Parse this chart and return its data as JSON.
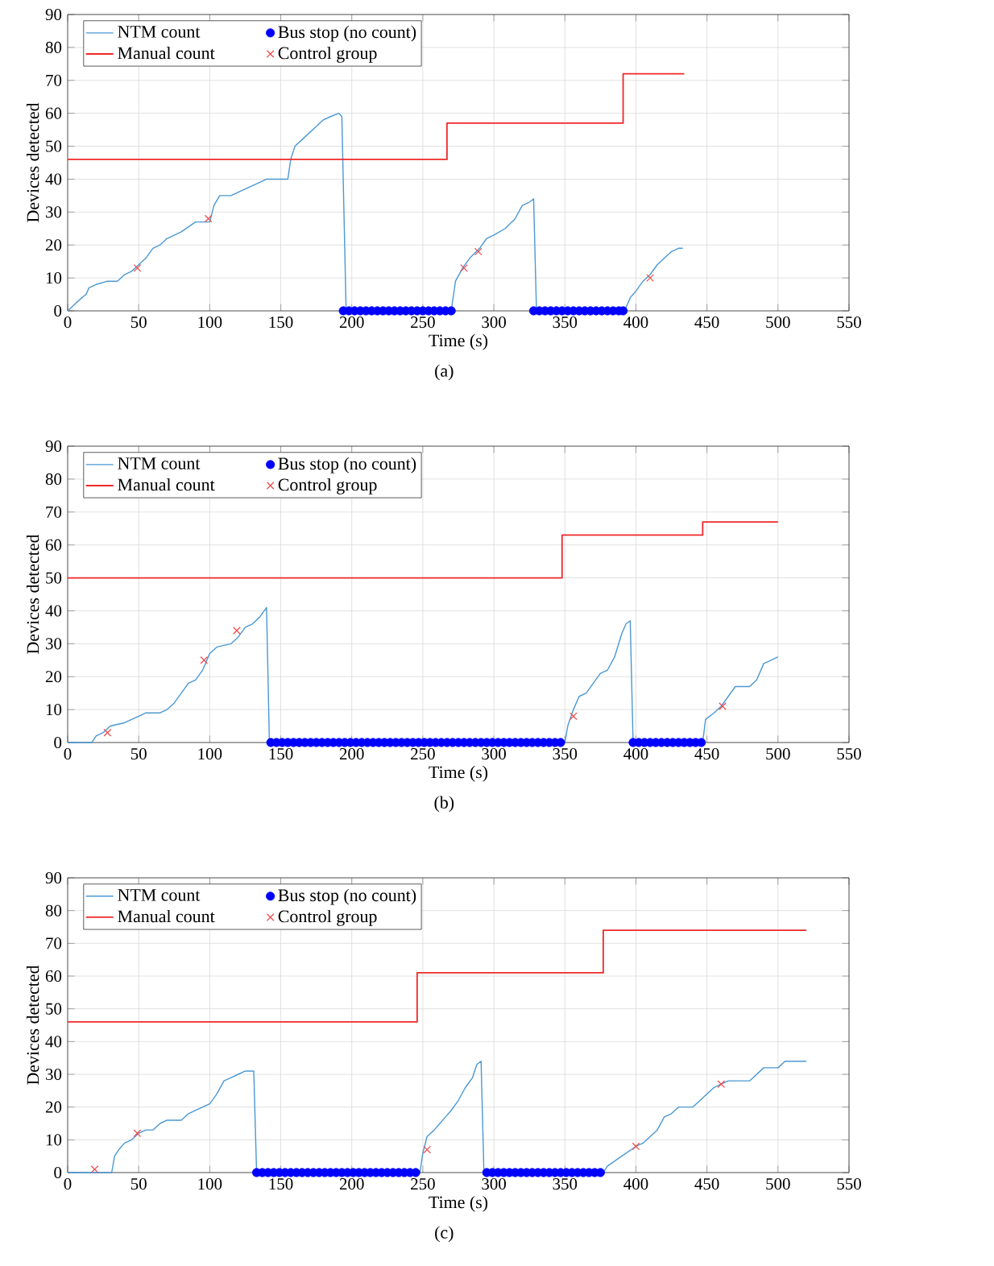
{
  "chart_data": [
    {
      "type": "line",
      "xlabel": "Time (s)",
      "ylabel": "Devices detected",
      "annotations": [
        "(a)"
      ],
      "xlim": [
        0,
        550
      ],
      "ylim": [
        0,
        90
      ],
      "xticks": [
        0,
        50,
        100,
        150,
        200,
        250,
        300,
        350,
        400,
        450,
        500,
        550
      ],
      "yticks": [
        0,
        10,
        20,
        30,
        40,
        50,
        60,
        70,
        80,
        90
      ],
      "grid": true,
      "legend": "top left",
      "series": [
        {
          "name": "NTM count",
          "color": "#4a98d4",
          "x": [
            0,
            5,
            10,
            13,
            15,
            20,
            28,
            35,
            40,
            45,
            50,
            55,
            60,
            65,
            70,
            80,
            90,
            100,
            103,
            107,
            115,
            125,
            135,
            140,
            155,
            157,
            160,
            165,
            170,
            175,
            180,
            185,
            191,
            193,
            196,
            270,
            273,
            278,
            283,
            290,
            295,
            300,
            308,
            315,
            320,
            325,
            328,
            330,
            392,
            396,
            400,
            405,
            410,
            415,
            420,
            425,
            430,
            433
          ],
          "values": [
            0,
            2,
            4,
            5,
            7,
            8,
            9,
            9,
            11,
            12,
            14,
            16,
            19,
            20,
            22,
            24,
            27,
            27,
            32,
            35,
            35,
            37,
            39,
            40,
            40,
            46,
            50,
            52,
            54,
            56,
            58,
            59,
            60,
            59,
            0,
            0,
            9,
            13,
            16,
            19,
            22,
            23,
            25,
            28,
            32,
            33,
            34,
            0,
            0,
            4,
            6,
            9,
            11,
            14,
            16,
            18,
            19,
            19
          ]
        },
        {
          "name": "Bus stop (no count)",
          "type": "scatter",
          "marker": "circle",
          "color": "#0000ff",
          "x": [
            194,
            198,
            202,
            206,
            210,
            214,
            218,
            222,
            226,
            230,
            234,
            238,
            242,
            246,
            250,
            254,
            258,
            262,
            266,
            270,
            328,
            332,
            336,
            340,
            344,
            348,
            352,
            356,
            360,
            364,
            368,
            372,
            376,
            380,
            384,
            388,
            391
          ],
          "values": [
            0,
            0,
            0,
            0,
            0,
            0,
            0,
            0,
            0,
            0,
            0,
            0,
            0,
            0,
            0,
            0,
            0,
            0,
            0,
            0,
            0,
            0,
            0,
            0,
            0,
            0,
            0,
            0,
            0,
            0,
            0,
            0,
            0,
            0,
            0,
            0,
            0
          ]
        },
        {
          "name": "Manual count",
          "type": "step",
          "color": "#f02828",
          "x": [
            0,
            267,
            391,
            434
          ],
          "values": [
            46,
            57,
            72,
            72
          ]
        },
        {
          "name": "Control group",
          "type": "scatter",
          "marker": "cross",
          "color": "#f04848",
          "x": [
            49,
            99,
            279,
            289,
            410
          ],
          "values": [
            13,
            28,
            13,
            18,
            10
          ]
        }
      ]
    },
    {
      "type": "line",
      "xlabel": "Time (s)",
      "ylabel": "Devices detected",
      "annotations": [
        "(b)"
      ],
      "xlim": [
        0,
        550
      ],
      "ylim": [
        0,
        90
      ],
      "xticks": [
        0,
        50,
        100,
        150,
        200,
        250,
        300,
        350,
        400,
        450,
        500,
        550
      ],
      "yticks": [
        0,
        10,
        20,
        30,
        40,
        50,
        60,
        70,
        80,
        90
      ],
      "grid": true,
      "legend": "top left",
      "series": [
        {
          "name": "NTM count",
          "color": "#4a98d4",
          "x": [
            0,
            17,
            20,
            25,
            30,
            40,
            50,
            55,
            65,
            70,
            75,
            80,
            85,
            90,
            95,
            100,
            105,
            115,
            120,
            125,
            130,
            135,
            140,
            142,
            350,
            352,
            356,
            360,
            365,
            370,
            375,
            380,
            385,
            390,
            393,
            396,
            398,
            447,
            449,
            455,
            460,
            465,
            470,
            480,
            485,
            490,
            495,
            500
          ],
          "values": [
            0,
            0,
            2,
            3,
            5,
            6,
            8,
            9,
            9,
            10,
            12,
            15,
            18,
            19,
            22,
            27,
            29,
            30,
            32,
            35,
            36,
            38,
            41,
            0,
            0,
            5,
            10,
            14,
            15,
            18,
            21,
            22,
            26,
            33,
            36,
            37,
            0,
            0,
            7,
            9,
            11,
            14,
            17,
            17,
            19,
            24,
            25,
            26
          ]
        },
        {
          "name": "Bus stop (no count)",
          "type": "scatter",
          "marker": "circle",
          "color": "#0000ff",
          "x": [
            143,
            147,
            151,
            155,
            159,
            163,
            167,
            171,
            175,
            179,
            183,
            187,
            191,
            195,
            199,
            203,
            207,
            211,
            215,
            219,
            223,
            227,
            231,
            235,
            239,
            243,
            247,
            251,
            255,
            259,
            263,
            267,
            271,
            275,
            279,
            283,
            287,
            291,
            295,
            299,
            303,
            307,
            311,
            315,
            319,
            323,
            327,
            331,
            335,
            339,
            343,
            347,
            398,
            402,
            406,
            410,
            414,
            418,
            422,
            426,
            430,
            434,
            438,
            442,
            446
          ],
          "values": [
            0,
            0,
            0,
            0,
            0,
            0,
            0,
            0,
            0,
            0,
            0,
            0,
            0,
            0,
            0,
            0,
            0,
            0,
            0,
            0,
            0,
            0,
            0,
            0,
            0,
            0,
            0,
            0,
            0,
            0,
            0,
            0,
            0,
            0,
            0,
            0,
            0,
            0,
            0,
            0,
            0,
            0,
            0,
            0,
            0,
            0,
            0,
            0,
            0,
            0,
            0,
            0,
            0,
            0,
            0,
            0,
            0,
            0,
            0,
            0,
            0,
            0,
            0,
            0,
            0
          ]
        },
        {
          "name": "Manual count",
          "type": "step",
          "color": "#f02828",
          "x": [
            0,
            348,
            447,
            500
          ],
          "values": [
            50,
            63,
            67,
            67
          ]
        },
        {
          "name": "Control group",
          "type": "scatter",
          "marker": "cross",
          "color": "#f04848",
          "x": [
            28,
            96,
            119,
            356,
            461
          ],
          "values": [
            3,
            25,
            34,
            8,
            11
          ]
        }
      ]
    },
    {
      "type": "line",
      "xlabel": "Time (s)",
      "ylabel": "Devices detected",
      "annotations": [
        "(c)"
      ],
      "xlim": [
        0,
        550
      ],
      "ylim": [
        0,
        90
      ],
      "xticks": [
        0,
        50,
        100,
        150,
        200,
        250,
        300,
        350,
        400,
        450,
        500,
        550
      ],
      "yticks": [
        0,
        10,
        20,
        30,
        40,
        50,
        60,
        70,
        80,
        90
      ],
      "grid": true,
      "legend": "top left",
      "series": [
        {
          "name": "NTM count",
          "color": "#4a98d4",
          "x": [
            0,
            31,
            33,
            36,
            40,
            45,
            50,
            55,
            60,
            65,
            70,
            80,
            85,
            95,
            100,
            105,
            110,
            115,
            120,
            125,
            131,
            133,
            248,
            250,
            253,
            258,
            262,
            266,
            270,
            275,
            280,
            285,
            288,
            291,
            293,
            377,
            380,
            390,
            400,
            405,
            410,
            415,
            420,
            425,
            430,
            440,
            445,
            450,
            455,
            460,
            465,
            480,
            485,
            490,
            500,
            505,
            520
          ],
          "values": [
            0,
            0,
            5,
            7,
            9,
            10,
            12,
            13,
            13,
            15,
            16,
            16,
            18,
            20,
            21,
            24,
            28,
            29,
            30,
            31,
            31,
            0,
            0,
            6,
            11,
            13,
            15,
            17,
            19,
            22,
            26,
            29,
            33,
            34,
            0,
            0,
            2,
            5,
            8,
            9,
            11,
            13,
            17,
            18,
            20,
            20,
            22,
            24,
            26,
            27,
            28,
            28,
            30,
            32,
            32,
            34,
            34
          ]
        },
        {
          "name": "Bus stop (no count)",
          "type": "scatter",
          "marker": "circle",
          "color": "#0000ff",
          "x": [
            133,
            137,
            141,
            145,
            149,
            153,
            157,
            161,
            165,
            169,
            173,
            177,
            181,
            185,
            189,
            193,
            197,
            201,
            205,
            209,
            213,
            217,
            221,
            225,
            229,
            233,
            237,
            241,
            245,
            295,
            299,
            303,
            307,
            311,
            315,
            319,
            323,
            327,
            331,
            335,
            339,
            343,
            347,
            351,
            355,
            359,
            363,
            367,
            371,
            375
          ],
          "values": [
            0,
            0,
            0,
            0,
            0,
            0,
            0,
            0,
            0,
            0,
            0,
            0,
            0,
            0,
            0,
            0,
            0,
            0,
            0,
            0,
            0,
            0,
            0,
            0,
            0,
            0,
            0,
            0,
            0,
            0,
            0,
            0,
            0,
            0,
            0,
            0,
            0,
            0,
            0,
            0,
            0,
            0,
            0,
            0,
            0,
            0,
            0,
            0,
            0,
            0
          ]
        },
        {
          "name": "Manual count",
          "type": "step",
          "color": "#f02828",
          "x": [
            0,
            246,
            377,
            520
          ],
          "values": [
            46,
            61,
            74,
            74
          ]
        },
        {
          "name": "Control group",
          "type": "scatter",
          "marker": "cross",
          "color": "#f04848",
          "x": [
            19,
            49,
            253,
            400,
            460
          ],
          "values": [
            1,
            12,
            7,
            8,
            27
          ]
        }
      ]
    }
  ]
}
